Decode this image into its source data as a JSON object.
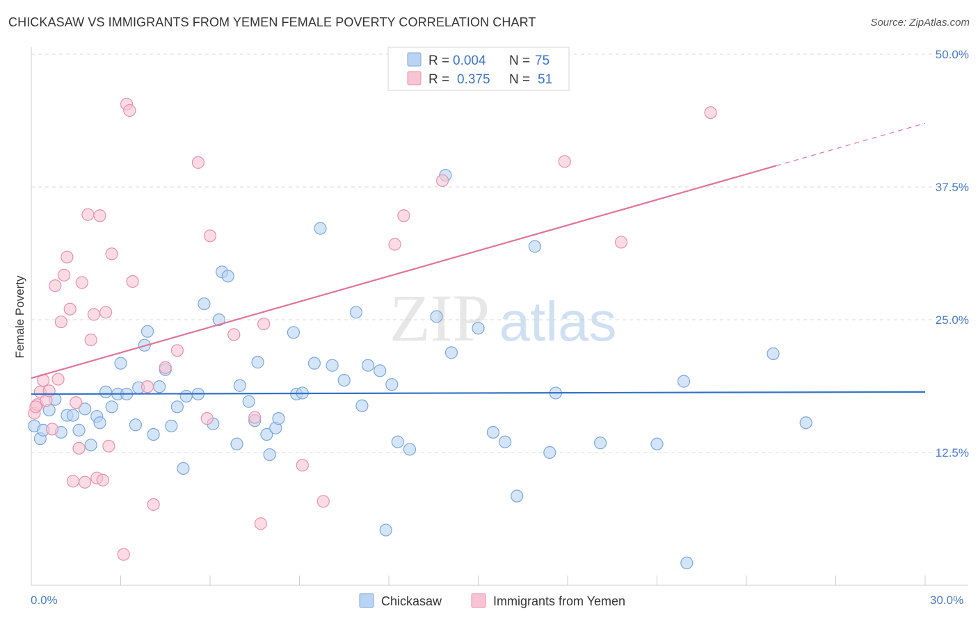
{
  "header": {
    "title": "CHICKASAW VS IMMIGRANTS FROM YEMEN FEMALE POVERTY CORRELATION CHART",
    "source": "Source: ZipAtlas.com"
  },
  "watermark": {
    "zip": "ZIP",
    "atlas": "atlas"
  },
  "colors": {
    "blue_fill": "#b9d3f3",
    "blue_stroke": "#7aa7de",
    "blue_line": "#3373c4",
    "pink_fill": "#f8c4d4",
    "pink_stroke": "#e890ad",
    "pink_line": "#e0739a",
    "tick_text": "#4a7cc2",
    "grid": "#d9d9d9"
  },
  "chart_data": {
    "type": "scatter",
    "title": "CHICKASAW VS IMMIGRANTS FROM YEMEN FEMALE POVERTY CORRELATION CHART",
    "xlabel": "",
    "ylabel": "Female Poverty",
    "xlim": [
      0,
      30
    ],
    "ylim": [
      0,
      50
    ],
    "x_tick_labels": [
      "0.0%",
      "30.0%"
    ],
    "y_ticks": [
      12.5,
      25.0,
      37.5,
      50.0
    ],
    "y_tick_labels": [
      "12.5%",
      "25.0%",
      "37.5%",
      "50.0%"
    ],
    "grid": true,
    "legend_stats": [
      {
        "r_label": "R =",
        "r_value": "0.004",
        "n_label": "N =",
        "n_value": "75"
      },
      {
        "r_label": "R =",
        "r_value": "0.375",
        "n_label": "N =",
        "n_value": "51"
      }
    ],
    "series": [
      {
        "name": "Chickasaw",
        "trend": {
          "x0": 0,
          "y0": 18.0,
          "x1": 30,
          "y1": 18.2
        },
        "points": [
          [
            0.1,
            15.0
          ],
          [
            0.3,
            13.8
          ],
          [
            0.4,
            14.6
          ],
          [
            0.6,
            16.5
          ],
          [
            0.8,
            17.5
          ],
          [
            1.0,
            14.4
          ],
          [
            1.2,
            16.0
          ],
          [
            1.4,
            16.0
          ],
          [
            1.6,
            14.6
          ],
          [
            1.8,
            16.6
          ],
          [
            2.0,
            13.2
          ],
          [
            2.2,
            15.9
          ],
          [
            2.3,
            15.3
          ],
          [
            2.5,
            18.2
          ],
          [
            2.7,
            16.8
          ],
          [
            2.9,
            18.0
          ],
          [
            3.0,
            20.9
          ],
          [
            3.2,
            18.0
          ],
          [
            3.5,
            15.1
          ],
          [
            3.6,
            18.6
          ],
          [
            3.8,
            22.6
          ],
          [
            3.9,
            23.9
          ],
          [
            4.1,
            14.2
          ],
          [
            4.3,
            18.7
          ],
          [
            4.5,
            20.3
          ],
          [
            4.7,
            15.0
          ],
          [
            4.9,
            16.8
          ],
          [
            5.1,
            11.0
          ],
          [
            5.2,
            17.8
          ],
          [
            5.6,
            18.0
          ],
          [
            5.8,
            26.5
          ],
          [
            6.1,
            15.2
          ],
          [
            6.3,
            25.0
          ],
          [
            6.4,
            29.5
          ],
          [
            6.6,
            29.1
          ],
          [
            6.9,
            13.3
          ],
          [
            7.0,
            18.8
          ],
          [
            7.3,
            17.3
          ],
          [
            7.5,
            15.5
          ],
          [
            7.6,
            21.0
          ],
          [
            7.9,
            14.2
          ],
          [
            8.0,
            12.3
          ],
          [
            8.2,
            14.8
          ],
          [
            8.3,
            15.7
          ],
          [
            8.8,
            23.8
          ],
          [
            8.9,
            18.0
          ],
          [
            9.1,
            18.1
          ],
          [
            9.5,
            20.9
          ],
          [
            9.7,
            33.6
          ],
          [
            10.1,
            20.7
          ],
          [
            10.5,
            19.3
          ],
          [
            10.9,
            25.7
          ],
          [
            11.1,
            16.9
          ],
          [
            11.3,
            20.7
          ],
          [
            11.7,
            20.2
          ],
          [
            11.9,
            5.2
          ],
          [
            12.1,
            18.9
          ],
          [
            12.3,
            13.5
          ],
          [
            12.7,
            12.8
          ],
          [
            13.6,
            25.3
          ],
          [
            13.9,
            38.6
          ],
          [
            14.1,
            21.9
          ],
          [
            15.0,
            24.2
          ],
          [
            15.5,
            14.4
          ],
          [
            15.9,
            13.5
          ],
          [
            16.3,
            8.4
          ],
          [
            16.9,
            31.9
          ],
          [
            17.4,
            12.5
          ],
          [
            17.6,
            18.1
          ],
          [
            19.1,
            13.4
          ],
          [
            21.0,
            13.3
          ],
          [
            21.9,
            19.2
          ],
          [
            22.0,
            2.1
          ],
          [
            24.9,
            21.8
          ],
          [
            26.0,
            15.3
          ]
        ]
      },
      {
        "name": "Immigrants from Yemen",
        "trend": {
          "x0": 0,
          "y0": 19.5,
          "x1": 25,
          "y1": 39.5,
          "dash_x1": 30,
          "dash_y1": 43.5
        },
        "points": [
          [
            0.1,
            16.2
          ],
          [
            0.2,
            17.0
          ],
          [
            0.3,
            18.2
          ],
          [
            0.4,
            19.3
          ],
          [
            0.5,
            17.4
          ],
          [
            0.6,
            18.3
          ],
          [
            0.7,
            14.7
          ],
          [
            0.8,
            28.2
          ],
          [
            0.9,
            19.4
          ],
          [
            1.0,
            24.8
          ],
          [
            1.1,
            29.2
          ],
          [
            1.2,
            30.9
          ],
          [
            1.3,
            26.0
          ],
          [
            1.4,
            9.8
          ],
          [
            1.5,
            17.2
          ],
          [
            1.6,
            12.9
          ],
          [
            1.7,
            28.5
          ],
          [
            1.8,
            9.7
          ],
          [
            1.9,
            34.9
          ],
          [
            2.0,
            23.1
          ],
          [
            2.1,
            25.5
          ],
          [
            2.2,
            10.1
          ],
          [
            2.3,
            34.8
          ],
          [
            2.4,
            9.9
          ],
          [
            2.5,
            25.7
          ],
          [
            2.6,
            13.1
          ],
          [
            2.7,
            31.2
          ],
          [
            3.1,
            2.9
          ],
          [
            3.2,
            45.3
          ],
          [
            3.3,
            44.7
          ],
          [
            3.4,
            28.6
          ],
          [
            3.9,
            18.7
          ],
          [
            4.1,
            7.6
          ],
          [
            4.5,
            20.5
          ],
          [
            4.9,
            22.1
          ],
          [
            5.6,
            39.8
          ],
          [
            5.9,
            15.7
          ],
          [
            6.0,
            32.9
          ],
          [
            6.8,
            23.6
          ],
          [
            7.5,
            15.8
          ],
          [
            7.7,
            5.8
          ],
          [
            7.8,
            24.6
          ],
          [
            9.1,
            11.3
          ],
          [
            9.8,
            7.9
          ],
          [
            12.2,
            32.1
          ],
          [
            12.5,
            34.8
          ],
          [
            13.8,
            38.1
          ],
          [
            17.9,
            39.9
          ],
          [
            19.8,
            32.3
          ],
          [
            22.8,
            44.5
          ],
          [
            0.15,
            16.8
          ]
        ]
      }
    ]
  }
}
